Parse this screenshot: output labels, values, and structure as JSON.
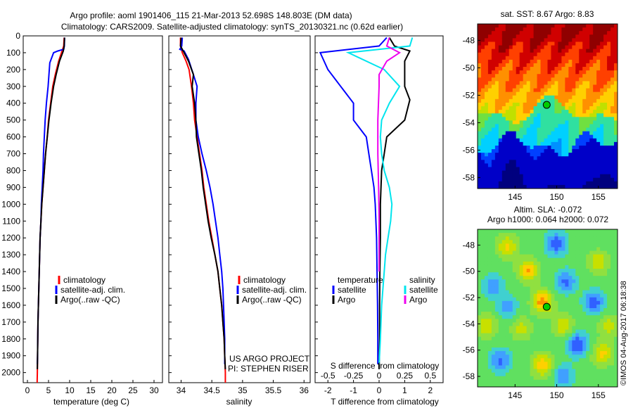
{
  "header": {
    "line1": "Argo profile: aoml 1901406_115 21-Mar-2013 52.698S 148.803E (DM data)",
    "line2": "Climatology: CARS2009. Satellite-adjusted climatology: synTS_20130321.nc (0.62d earlier)"
  },
  "colors": {
    "climatology": "#ff0000",
    "satellite": "#0000ff",
    "argo": "#000000",
    "salinity_satellite": "#00e5ee",
    "salinity_argo": "#ee00ee"
  },
  "depth_axis": {
    "ticks": [
      0,
      100,
      200,
      300,
      400,
      500,
      600,
      700,
      800,
      900,
      1000,
      1100,
      1200,
      1300,
      1400,
      1500,
      1600,
      1700,
      1800,
      1900,
      2000
    ],
    "ylim": [
      0,
      2060
    ]
  },
  "chart_data": [
    {
      "id": "temperature",
      "type": "line",
      "xlabel": "temperature (deg C)",
      "xlim": [
        -1,
        32
      ],
      "xticks": [
        0,
        5,
        10,
        15,
        20,
        25,
        30
      ],
      "ylim": [
        0,
        2060
      ],
      "legend": {
        "climatology": "climatology",
        "satellite": "satellite-adj. clim.",
        "argo": "Argo(..raw -QC)"
      },
      "series": [
        {
          "name": "climatology",
          "color": "#ff0000",
          "points": [
            [
              8.7,
              10
            ],
            [
              8.6,
              60
            ],
            [
              8.2,
              90
            ],
            [
              7.4,
              150
            ],
            [
              6.6,
              230
            ],
            [
              6.0,
              300
            ],
            [
              5.5,
              400
            ],
            [
              5.0,
              500
            ],
            [
              4.7,
              600
            ],
            [
              4.3,
              700
            ],
            [
              4.0,
              800
            ],
            [
              3.7,
              900
            ],
            [
              3.4,
              1000
            ],
            [
              3.2,
              1100
            ],
            [
              3.0,
              1200
            ],
            [
              2.9,
              1300
            ],
            [
              2.8,
              1400
            ],
            [
              2.7,
              1500
            ],
            [
              2.6,
              1600
            ],
            [
              2.5,
              1700
            ],
            [
              2.45,
              1800
            ],
            [
              2.4,
              1900
            ],
            [
              2.35,
              2000
            ],
            [
              2.3,
              2060
            ]
          ]
        },
        {
          "name": "satellite-adj. clim.",
          "color": "#0000ff",
          "points": [
            [
              8.8,
              10
            ],
            [
              8.75,
              60
            ],
            [
              8.6,
              80
            ],
            [
              7.2,
              90
            ],
            [
              6.2,
              100
            ],
            [
              5.3,
              160
            ],
            [
              5.1,
              230
            ],
            [
              4.9,
              300
            ],
            [
              4.5,
              400
            ],
            [
              4.2,
              500
            ],
            [
              4.0,
              600
            ],
            [
              3.8,
              700
            ],
            [
              3.7,
              800
            ],
            [
              3.5,
              900
            ],
            [
              3.3,
              1000
            ],
            [
              3.2,
              1100
            ],
            [
              3.0,
              1200
            ],
            [
              2.9,
              1300
            ],
            [
              2.8,
              1400
            ],
            [
              2.7,
              1500
            ],
            [
              2.6,
              1600
            ],
            [
              2.5,
              1700
            ],
            [
              2.45,
              1800
            ],
            [
              2.4,
              1900
            ],
            [
              2.35,
              1950
            ]
          ]
        },
        {
          "name": "Argo(..raw -QC)",
          "color": "#000000",
          "points": [
            [
              8.8,
              10
            ],
            [
              8.7,
              60
            ],
            [
              8.5,
              90
            ],
            [
              7.6,
              150
            ],
            [
              6.8,
              230
            ],
            [
              6.2,
              300
            ],
            [
              5.6,
              400
            ],
            [
              5.1,
              500
            ],
            [
              4.7,
              600
            ],
            [
              4.3,
              700
            ],
            [
              4.0,
              800
            ],
            [
              3.7,
              900
            ],
            [
              3.4,
              1000
            ],
            [
              3.2,
              1100
            ],
            [
              3.0,
              1200
            ],
            [
              2.9,
              1300
            ],
            [
              2.8,
              1400
            ],
            [
              2.7,
              1500
            ],
            [
              2.6,
              1600
            ],
            [
              2.5,
              1700
            ],
            [
              2.45,
              1800
            ],
            [
              2.4,
              1900
            ],
            [
              2.35,
              1980
            ]
          ]
        }
      ]
    },
    {
      "id": "salinity",
      "type": "line",
      "xlabel": "salinity",
      "xlim": [
        33.8,
        36.1
      ],
      "xticks": [
        34,
        34.5,
        35,
        35.5,
        36
      ],
      "ylim": [
        0,
        2060
      ],
      "legend": {
        "climatology": "climatology",
        "satellite": "satellite-adj. clim.",
        "argo": "Argo(..raw -QC)"
      },
      "annotation": [
        "US ARGO PROJECT",
        "PI: STEPHEN RISER"
      ],
      "series": [
        {
          "name": "climatology",
          "color": "#ff0000",
          "points": [
            [
              33.99,
              10
            ],
            [
              33.99,
              60
            ],
            [
              34.02,
              100
            ],
            [
              34.08,
              150
            ],
            [
              34.13,
              200
            ],
            [
              34.17,
              300
            ],
            [
              34.2,
              400
            ],
            [
              34.22,
              500
            ],
            [
              34.26,
              600
            ],
            [
              34.3,
              700
            ],
            [
              34.34,
              800
            ],
            [
              34.37,
              900
            ],
            [
              34.41,
              1000
            ],
            [
              34.45,
              1100
            ],
            [
              34.5,
              1200
            ],
            [
              34.55,
              1300
            ],
            [
              34.6,
              1400
            ],
            [
              34.63,
              1500
            ],
            [
              34.66,
              1600
            ],
            [
              34.68,
              1700
            ],
            [
              34.7,
              1800
            ],
            [
              34.71,
              1900
            ],
            [
              34.72,
              2000
            ],
            [
              34.72,
              2060
            ]
          ]
        },
        {
          "name": "satellite-adj. clim.",
          "color": "#0000ff",
          "points": [
            [
              34.02,
              10
            ],
            [
              34.01,
              60
            ],
            [
              33.98,
              80
            ],
            [
              34.05,
              90
            ],
            [
              34.12,
              140
            ],
            [
              34.2,
              230
            ],
            [
              34.26,
              300
            ],
            [
              34.24,
              400
            ],
            [
              34.24,
              500
            ],
            [
              34.28,
              600
            ],
            [
              34.34,
              700
            ],
            [
              34.41,
              800
            ],
            [
              34.47,
              900
            ],
            [
              34.52,
              1000
            ],
            [
              34.56,
              1100
            ],
            [
              34.6,
              1200
            ],
            [
              34.63,
              1300
            ],
            [
              34.66,
              1400
            ],
            [
              34.68,
              1500
            ],
            [
              34.69,
              1600
            ],
            [
              34.7,
              1700
            ],
            [
              34.71,
              1800
            ],
            [
              34.71,
              1900
            ],
            [
              34.71,
              1950
            ]
          ]
        },
        {
          "name": "Argo(..raw -QC)",
          "color": "#000000",
          "points": [
            [
              34.0,
              10
            ],
            [
              33.99,
              60
            ],
            [
              34.05,
              100
            ],
            [
              34.12,
              150
            ],
            [
              34.2,
              230
            ],
            [
              34.18,
              300
            ],
            [
              34.22,
              400
            ],
            [
              34.24,
              500
            ],
            [
              34.25,
              600
            ],
            [
              34.29,
              700
            ],
            [
              34.33,
              800
            ],
            [
              34.36,
              900
            ],
            [
              34.4,
              1000
            ],
            [
              34.44,
              1100
            ],
            [
              34.49,
              1200
            ],
            [
              34.55,
              1300
            ],
            [
              34.6,
              1400
            ],
            [
              34.63,
              1500
            ],
            [
              34.66,
              1600
            ],
            [
              34.68,
              1700
            ],
            [
              34.7,
              1800
            ],
            [
              34.71,
              1900
            ],
            [
              34.72,
              1980
            ]
          ]
        }
      ]
    },
    {
      "id": "difference",
      "type": "line",
      "xlabel": "T difference from climatology",
      "xlabel2": "S difference from climatology",
      "xlim": [
        -2.5,
        2.5
      ],
      "xticks": [
        -2,
        -1,
        0,
        1,
        2
      ],
      "xticks_s": [
        -0.5,
        -0.25,
        0,
        0.25,
        0.5
      ],
      "ylim": [
        0,
        2060
      ],
      "legend": {
        "temperature": "temperature",
        "salinity": "salinity",
        "t_satellite": "satellite",
        "t_argo": "Argo",
        "s_satellite": "satellite",
        "s_argo": "Argo"
      },
      "series": [
        {
          "name": "satellite",
          "color": "#0000ff",
          "points": [
            [
              0.3,
              10
            ],
            [
              0,
              60
            ],
            [
              -2.3,
              100
            ],
            [
              -2.0,
              200
            ],
            [
              -1.5,
              300
            ],
            [
              -1.0,
              400
            ],
            [
              -1.0,
              500
            ],
            [
              -0.5,
              600
            ],
            [
              -0.4,
              700
            ],
            [
              -0.3,
              800
            ],
            [
              -0.2,
              900
            ],
            [
              -0.15,
              1000
            ],
            [
              -0.1,
              1200
            ],
            [
              -0.08,
              1400
            ],
            [
              -0.06,
              1600
            ],
            [
              -0.05,
              1800
            ],
            [
              -0.05,
              1950
            ]
          ]
        },
        {
          "name": "Argo",
          "color": "#000000",
          "points": [
            [
              0.4,
              10
            ],
            [
              0.6,
              60
            ],
            [
              1.2,
              90
            ],
            [
              1.0,
              150
            ],
            [
              1.0,
              250
            ],
            [
              1.0,
              300
            ],
            [
              1.2,
              380
            ],
            [
              1.0,
              500
            ],
            [
              0.3,
              600
            ],
            [
              0.2,
              700
            ],
            [
              0.1,
              800
            ],
            [
              0.05,
              1000
            ],
            [
              0.05,
              1200
            ],
            [
              0.03,
              1400
            ],
            [
              0.02,
              1600
            ],
            [
              0.02,
              1800
            ],
            [
              0.0,
              1980
            ]
          ]
        },
        {
          "name": "satellite",
          "color": "#00e5ee",
          "points": [
            [
              1.3,
              10
            ],
            [
              1.2,
              60
            ],
            [
              -1.2,
              100
            ],
            [
              0.2,
              200
            ],
            [
              0.8,
              300
            ],
            [
              0.4,
              400
            ],
            [
              0.1,
              500
            ],
            [
              0.05,
              600
            ],
            [
              0.1,
              700
            ],
            [
              0.2,
              800
            ],
            [
              0.4,
              900
            ],
            [
              0.5,
              1000
            ],
            [
              0.45,
              1100
            ],
            [
              0.35,
              1200
            ],
            [
              0.25,
              1300
            ],
            [
              0.2,
              1400
            ],
            [
              0.1,
              1600
            ],
            [
              0.05,
              1800
            ],
            [
              0.0,
              1950
            ]
          ]
        },
        {
          "name": "Argo",
          "color": "#ee00ee",
          "points": [
            [
              0.4,
              10
            ],
            [
              0.3,
              60
            ],
            [
              0.8,
              100
            ],
            [
              0.3,
              150
            ],
            [
              0.0,
              230
            ],
            [
              0.0,
              300
            ],
            [
              -0.05,
              500
            ],
            [
              -0.05,
              700
            ],
            [
              -0.02,
              900
            ],
            [
              0.0,
              1100
            ],
            [
              0.0,
              1400
            ]
          ]
        }
      ]
    },
    {
      "id": "sst_map",
      "type": "heatmap",
      "title": "sat. SST: 8.67 Argo: 8.83",
      "xticks": [
        145,
        150,
        155
      ],
      "yticks": [
        -48,
        -50,
        -52,
        -54,
        -56,
        -58
      ],
      "xlim": [
        140.5,
        157.3
      ],
      "ylim": [
        -58.8,
        -46.8
      ],
      "marker": {
        "lon": 148.8,
        "lat": -52.7
      }
    },
    {
      "id": "sla_map",
      "type": "heatmap",
      "title": "Altim. SLA: -0.072",
      "subtitle": "Argo h1000: 0.064 h2000: 0.072",
      "xticks": [
        145,
        150,
        155
      ],
      "yticks": [
        -48,
        -50,
        -52,
        -54,
        -56,
        -58
      ],
      "xlim": [
        140.5,
        157.3
      ],
      "ylim": [
        -58.8,
        -46.8
      ],
      "marker": {
        "lon": 148.8,
        "lat": -52.7
      }
    }
  ],
  "footer": {
    "credit": "©IMOS 04-Aug-2017 06:18:38"
  }
}
